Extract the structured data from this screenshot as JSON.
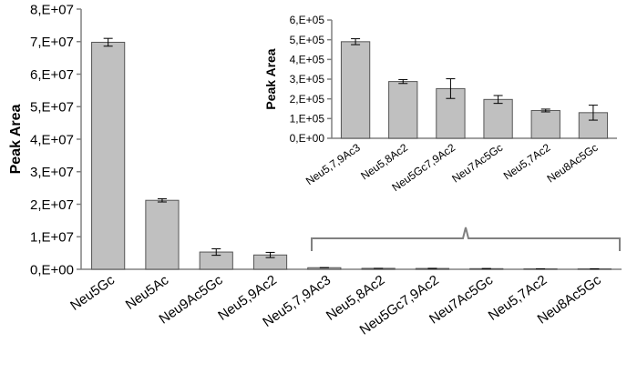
{
  "chart_data": [
    {
      "type": "bar",
      "ylabel": "Peak Area",
      "xlabel": "",
      "ylim": [
        0,
        80000000
      ],
      "yticks": [
        "0,E+00",
        "1,E+07",
        "2,E+07",
        "3,E+07",
        "4,E+07",
        "5,E+07",
        "6,E+07",
        "7,E+07",
        "8,E+07"
      ],
      "categories": [
        "Neu5Gc",
        "Neu5Ac",
        "Neu9Ac5Gc",
        "Neu5,9Ac2",
        "Neu5,7,9Ac3",
        "Neu5,8Ac2",
        "Neu5Gc7,9Ac2",
        "Neu7Ac5Gc",
        "Neu5,7Ac2",
        "Neu8Ac5Gc"
      ],
      "values": [
        69800000,
        21200000,
        5300000,
        4400000,
        490000,
        288000,
        252000,
        197000,
        141000,
        130000
      ],
      "errors": [
        1200000,
        500000,
        1000000,
        800000,
        15000,
        10000,
        50000,
        20000,
        7000,
        38000
      ],
      "bar_color": "#c0c0c0",
      "grid": false
    },
    {
      "type": "bar",
      "ylabel": "Peak Area",
      "xlabel": "",
      "ylim": [
        0,
        600000
      ],
      "yticks": [
        "0,E+00",
        "1,E+05",
        "2,E+05",
        "3,E+05",
        "4,E+05",
        "5,E+05",
        "6,E+05"
      ],
      "categories": [
        "Neu5,7,9Ac3",
        "Neu5,8Ac2",
        "Neu5Gc7,9Ac2",
        "Neu7Ac5Gc",
        "Neu5,7Ac2",
        "Neu8Ac5Gc"
      ],
      "values": [
        490000,
        288000,
        252000,
        197000,
        141000,
        130000
      ],
      "errors": [
        15000,
        10000,
        50000,
        20000,
        7000,
        38000
      ],
      "bar_color": "#c0c0c0",
      "grid": false
    }
  ]
}
